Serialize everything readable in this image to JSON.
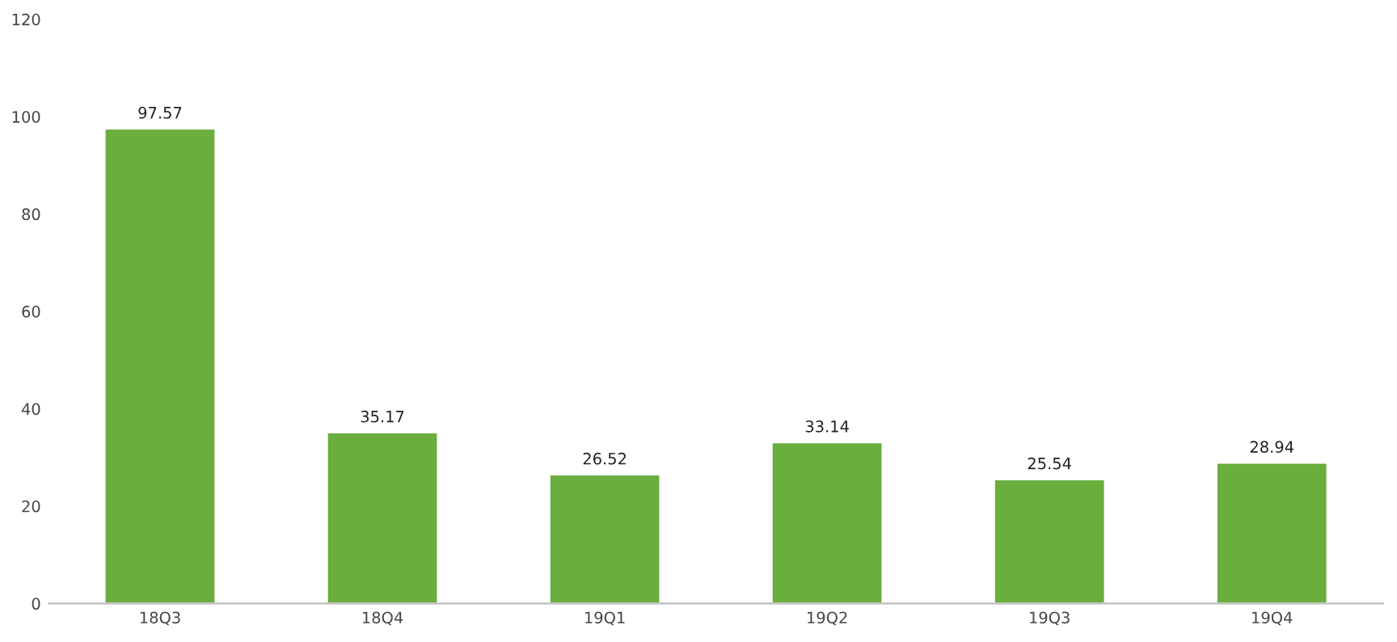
{
  "chart_data": {
    "type": "bar",
    "categories": [
      "18Q3",
      "18Q4",
      "19Q1",
      "19Q2",
      "19Q3",
      "19Q4"
    ],
    "values": [
      97.57,
      35.17,
      26.52,
      33.14,
      25.54,
      28.94
    ],
    "color": "#6aae3e",
    "ylim": [
      0,
      120
    ],
    "yticks": [
      0,
      20,
      40,
      60,
      80,
      100,
      120
    ],
    "data_labels": true,
    "grid": false,
    "legend": false
  }
}
